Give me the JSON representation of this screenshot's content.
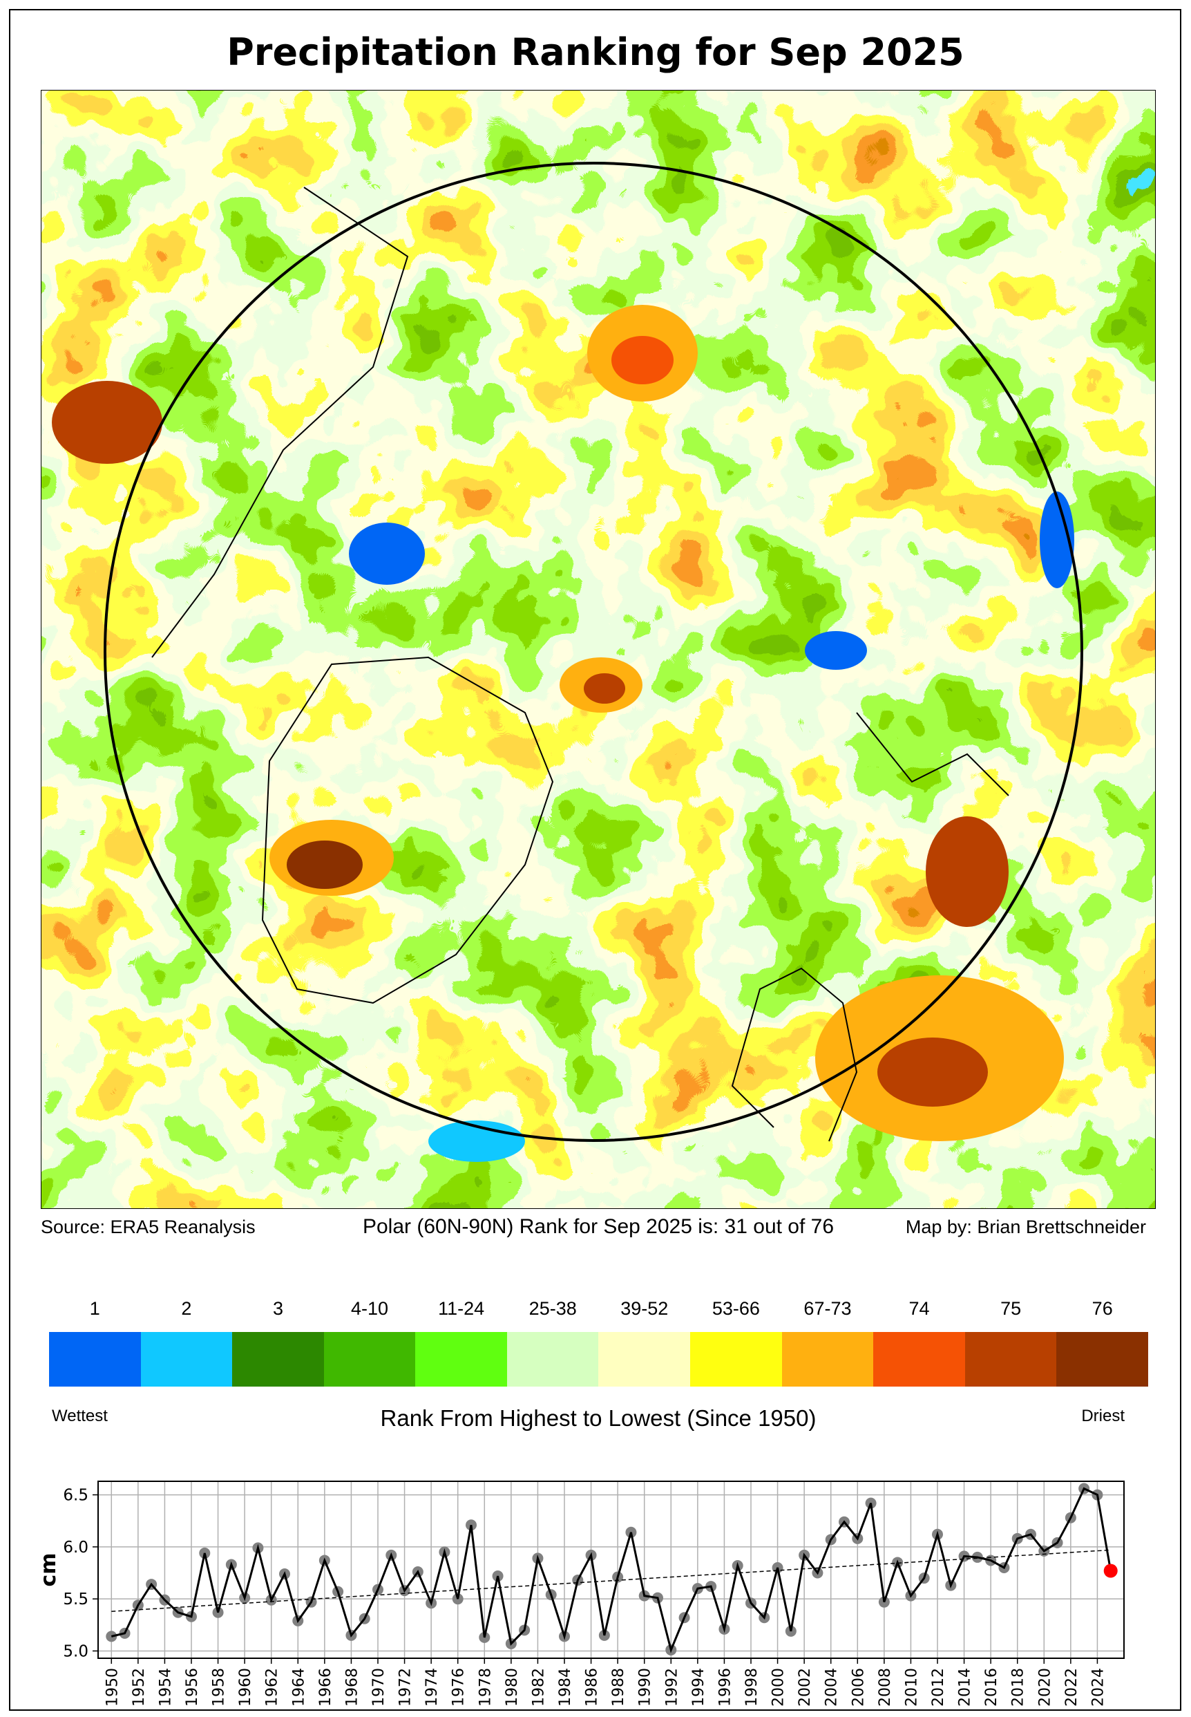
{
  "title": "Precipitation Ranking for Sep 2025",
  "footer": {
    "source": "Source: ERA5 Reanalysis",
    "rank_statement": "Polar (60N-90N) Rank for Sep 2025 is: 31 out of 76",
    "credit": "Map by: Brian Brettschneider"
  },
  "colorbar": {
    "bins": [
      {
        "label": "1",
        "color": "#0066f5"
      },
      {
        "label": "2",
        "color": "#10c8ff"
      },
      {
        "label": "3",
        "color": "#2c8800"
      },
      {
        "label": "4-10",
        "color": "#40b800"
      },
      {
        "label": "11-24",
        "color": "#60ff10"
      },
      {
        "label": "25-38",
        "color": "#d6ffc0"
      },
      {
        "label": "39-52",
        "color": "#ffffc0"
      },
      {
        "label": "53-66",
        "color": "#ffff10"
      },
      {
        "label": "67-73",
        "color": "#ffb010"
      },
      {
        "label": "74",
        "color": "#f55205"
      },
      {
        "label": "75",
        "color": "#b84000"
      },
      {
        "label": "76",
        "color": "#8a3000"
      }
    ],
    "left_label": "Wettest",
    "right_label": "Driest",
    "axis_label": "Rank From Highest to Lowest (Since 1950)"
  },
  "chart_data": {
    "type": "line",
    "title": "",
    "xlabel": "",
    "ylabel": "cm",
    "xlim": [
      1949,
      2026
    ],
    "ylim": [
      4.93,
      6.63
    ],
    "yticks": [
      "5.0",
      "5.5",
      "6.0",
      "6.5"
    ],
    "xticks": [
      "1950",
      "1952",
      "1954",
      "1956",
      "1958",
      "1960",
      "1962",
      "1964",
      "1966",
      "1968",
      "1970",
      "1972",
      "1974",
      "1976",
      "1978",
      "1980",
      "1982",
      "1984",
      "1986",
      "1988",
      "1990",
      "1992",
      "1994",
      "1996",
      "1998",
      "2000",
      "2002",
      "2004",
      "2006",
      "2008",
      "2010",
      "2012",
      "2014",
      "2016",
      "2018",
      "2020",
      "2022",
      "2024"
    ],
    "grid": true,
    "x": [
      1950,
      1951,
      1952,
      1953,
      1954,
      1955,
      1956,
      1957,
      1958,
      1959,
      1960,
      1961,
      1962,
      1963,
      1964,
      1965,
      1966,
      1967,
      1968,
      1969,
      1970,
      1971,
      1972,
      1973,
      1974,
      1975,
      1976,
      1977,
      1978,
      1979,
      1980,
      1981,
      1982,
      1983,
      1984,
      1985,
      1986,
      1987,
      1988,
      1989,
      1990,
      1991,
      1992,
      1993,
      1994,
      1995,
      1996,
      1997,
      1998,
      1999,
      2000,
      2001,
      2002,
      2003,
      2004,
      2005,
      2006,
      2007,
      2008,
      2009,
      2010,
      2011,
      2012,
      2013,
      2014,
      2015,
      2016,
      2017,
      2018,
      2019,
      2020,
      2021,
      2022,
      2023,
      2024,
      2025
    ],
    "values": [
      5.14,
      5.17,
      5.44,
      5.64,
      5.49,
      5.37,
      5.33,
      5.94,
      5.37,
      5.83,
      5.51,
      5.99,
      5.49,
      5.74,
      5.29,
      5.47,
      5.87,
      5.57,
      5.15,
      5.31,
      5.59,
      5.92,
      5.58,
      5.76,
      5.46,
      5.95,
      5.5,
      6.21,
      5.13,
      5.72,
      5.07,
      5.2,
      5.89,
      5.54,
      5.14,
      5.68,
      5.92,
      5.15,
      5.71,
      6.14,
      5.53,
      5.51,
      5.01,
      5.32,
      5.6,
      5.62,
      5.21,
      5.82,
      5.46,
      5.32,
      5.8,
      5.19,
      5.92,
      5.75,
      6.07,
      6.24,
      6.08,
      6.42,
      5.47,
      5.85,
      5.53,
      5.7,
      6.12,
      5.63,
      5.91,
      5.9,
      5.87,
      5.8,
      6.08,
      6.12,
      5.96,
      6.04,
      6.28,
      6.56,
      6.5,
      5.77
    ],
    "trend": {
      "x": [
        1950,
        2025
      ],
      "y": [
        5.38,
        5.97
      ]
    },
    "highlight": {
      "x": 2025,
      "value": 5.77,
      "color": "#ff0000"
    },
    "point_color": "#808080",
    "line_color": "#000000"
  }
}
